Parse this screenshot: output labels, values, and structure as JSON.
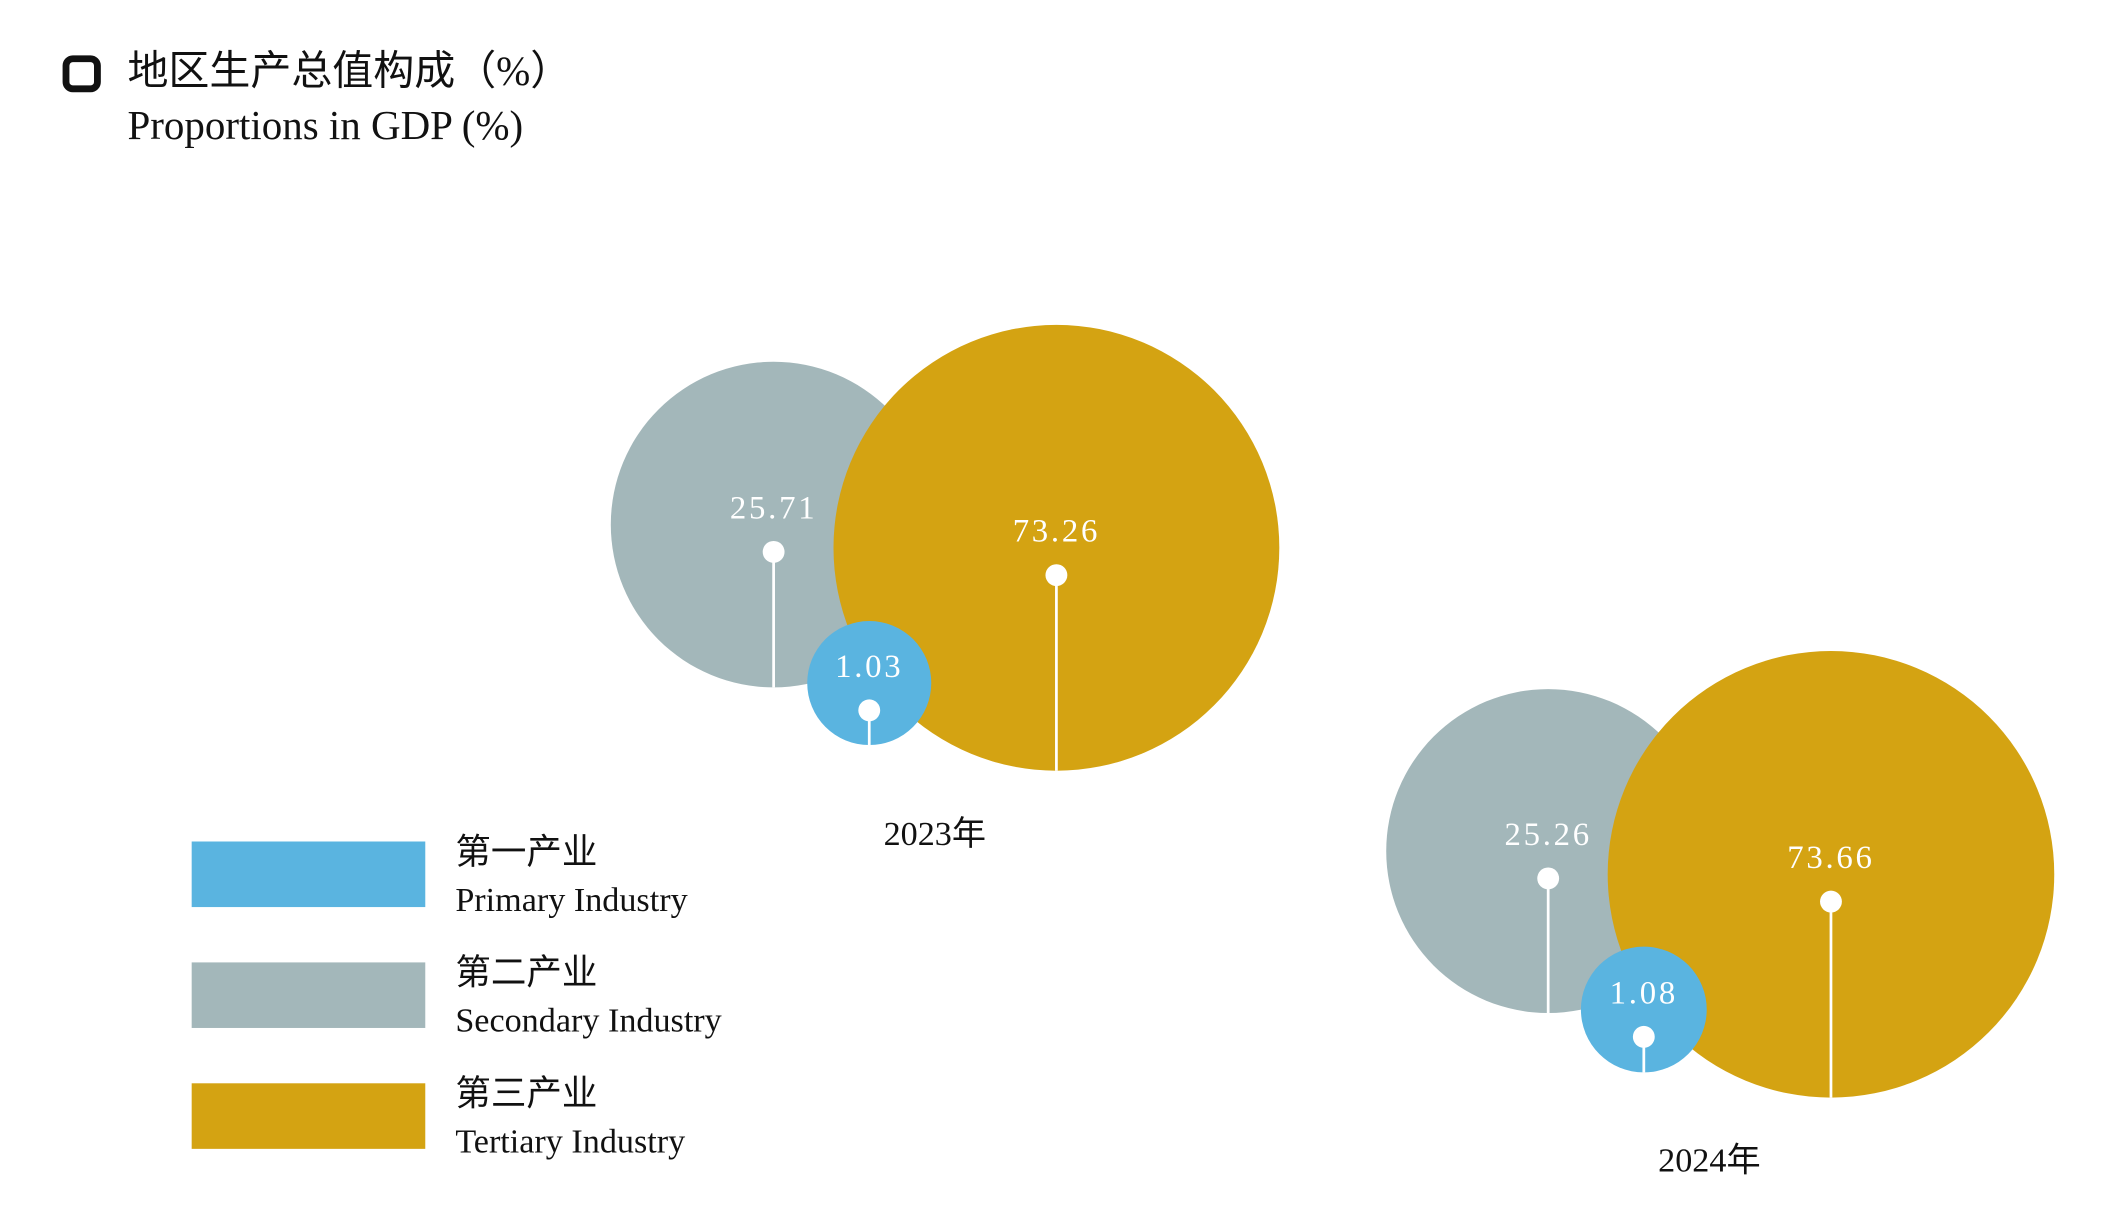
{
  "chart_data": {
    "type": "bubble",
    "title": "地区生产总值构成（%）",
    "subtitle": "Proportions in GDP (%)",
    "categories": [
      "2023年",
      "2024年"
    ],
    "series": [
      {
        "name": "第一产业",
        "name_en": "Primary Industry",
        "color": "#5ab4e0",
        "values": [
          1.03,
          1.08
        ]
      },
      {
        "name": "第二产业",
        "name_en": "Secondary Industry",
        "color": "#a3b7ba",
        "values": [
          25.71,
          25.26
        ]
      },
      {
        "name": "第三产业",
        "name_en": "Tertiary Industry",
        "color": "#d4a312",
        "values": [
          73.26,
          73.66
        ]
      }
    ]
  }
}
